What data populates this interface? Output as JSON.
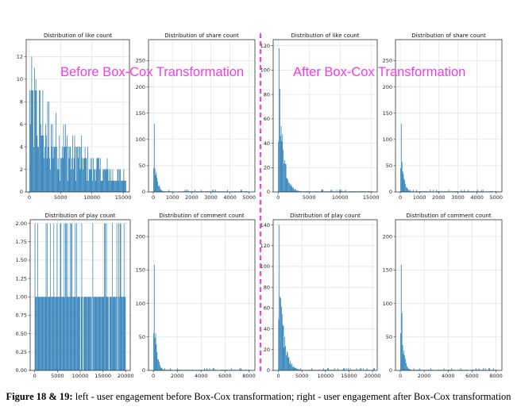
{
  "overlay": {
    "before_label": "Before Box-Cox Transformation",
    "after_label": "After Box-Cox Transformation",
    "label_color": "#f03ee8",
    "divider_color": "#f03ee8"
  },
  "caption": {
    "figure_label": "Figure 18 & 19:",
    "text": " left - user engagement before Box-Cox transformation; right - user engagement after Box-Cox transformation"
  },
  "chart_data": [
    {
      "type": "bar",
      "panel": "before-like",
      "title": "Distribution of like count",
      "x_ticks": [
        0,
        5000,
        10000,
        15000
      ],
      "y_ticks": [
        0,
        2,
        4,
        6,
        8,
        10,
        12
      ],
      "xlim": [
        -500,
        16000
      ],
      "ylim": [
        0,
        13.5
      ],
      "grid": true,
      "color": "#1f77b4",
      "pattern": "noisy-decay",
      "x_range": [
        0,
        15500
      ],
      "y_max": 13,
      "y_min": 0,
      "decay": 8000
    },
    {
      "type": "bar",
      "panel": "before-share",
      "title": "Distribution of share count",
      "x_ticks": [
        0,
        1000,
        2000,
        3000,
        4000,
        5000
      ],
      "y_ticks": [
        0,
        50,
        100,
        150,
        200,
        250
      ],
      "xlim": [
        -250,
        5300
      ],
      "ylim": [
        0,
        290
      ],
      "grid": true,
      "color": "#1f77b4",
      "pattern": "spike-decay",
      "x_range": [
        0,
        5100
      ],
      "y_max": 130,
      "decay": 120
    },
    {
      "type": "bar",
      "panel": "after-like",
      "title": "Distribution of like count",
      "x_ticks": [
        0,
        5000,
        10000,
        15000
      ],
      "y_ticks": [
        0,
        20,
        40,
        60,
        80,
        100,
        120
      ],
      "xlim": [
        -800,
        16000
      ],
      "ylim": [
        0,
        125
      ],
      "grid": true,
      "color": "#1f77b4",
      "pattern": "spike-decay",
      "x_range": [
        0,
        15500
      ],
      "y_max": 118,
      "decay": 700
    },
    {
      "type": "bar",
      "panel": "after-share",
      "title": "Distribution of share count",
      "x_ticks": [
        0,
        1000,
        2000,
        3000,
        4000,
        5000
      ],
      "y_ticks": [
        0,
        50,
        100,
        150,
        200,
        250
      ],
      "xlim": [
        -250,
        5300
      ],
      "ylim": [
        0,
        290
      ],
      "grid": true,
      "color": "#1f77b4",
      "pattern": "spike-decay",
      "x_range": [
        0,
        5100
      ],
      "y_max": 130,
      "decay": 120
    },
    {
      "type": "bar",
      "panel": "before-play",
      "title": "Distribution of play count",
      "x_ticks": [
        0,
        5000,
        10000,
        15000,
        20000
      ],
      "y_ticks": [
        0.0,
        0.25,
        0.5,
        0.75,
        1.0,
        1.25,
        1.5,
        1.75,
        2.0
      ],
      "y_tick_labels": [
        "0.00",
        "0.25",
        "0.50",
        "0.75",
        "1.00",
        "1.25",
        "1.50",
        "1.75",
        "2.00"
      ],
      "xlim": [
        -1000,
        21000
      ],
      "ylim": [
        0,
        2.05
      ],
      "grid": true,
      "color": "#1f77b4",
      "pattern": "discrete-levels",
      "x_range": [
        0,
        20000
      ],
      "levels": [
        1,
        2
      ]
    },
    {
      "type": "bar",
      "panel": "before-comment",
      "title": "Distribution of comment count",
      "x_ticks": [
        0,
        2000,
        4000,
        6000,
        8000
      ],
      "y_ticks": [
        0,
        50,
        100,
        150,
        200
      ],
      "xlim": [
        -400,
        8500
      ],
      "ylim": [
        0,
        225
      ],
      "grid": true,
      "color": "#1f77b4",
      "pattern": "spike-decay",
      "x_range": [
        0,
        8200
      ],
      "y_max": 158,
      "decay": 180
    },
    {
      "type": "bar",
      "panel": "after-play",
      "title": "Distribution of play count",
      "x_ticks": [
        0,
        5000,
        10000,
        15000,
        20000
      ],
      "y_ticks": [
        0,
        20,
        40,
        60,
        80,
        100,
        120,
        140
      ],
      "xlim": [
        -1100,
        21000
      ],
      "ylim": [
        0,
        145
      ],
      "grid": true,
      "color": "#1f77b4",
      "pattern": "spike-decay",
      "x_range": [
        0,
        20500
      ],
      "y_max": 140,
      "decay": 900
    },
    {
      "type": "bar",
      "panel": "after-comment",
      "title": "Distribution of comment count",
      "x_ticks": [
        0,
        2000,
        4000,
        6000,
        8000
      ],
      "y_ticks": [
        0,
        50,
        100,
        150,
        200
      ],
      "xlim": [
        -400,
        8500
      ],
      "ylim": [
        0,
        225
      ],
      "grid": true,
      "color": "#1f77b4",
      "pattern": "spike-decay",
      "x_range": [
        0,
        8200
      ],
      "y_max": 158,
      "decay": 180
    }
  ]
}
